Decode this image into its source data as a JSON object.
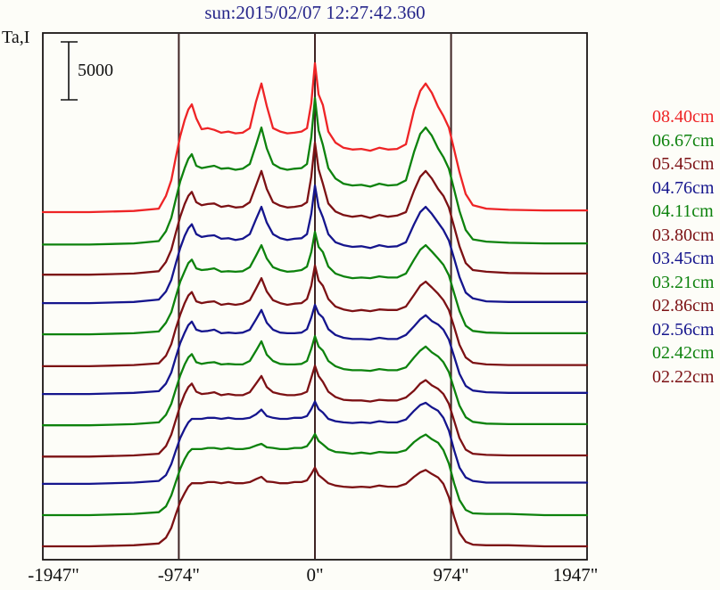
{
  "page": {
    "background": "#fdfdf8"
  },
  "chart_data": {
    "type": "line",
    "title": "sun:2015/02/07 12:27:42.360",
    "title_color": "#26268a",
    "ylabel": "Ta,I",
    "scalebar": {
      "label": "5000",
      "value": 5000
    },
    "x_axis": {
      "unit": "arcsec",
      "range": [
        -1947,
        1947
      ],
      "tick_values": [
        -1947,
        -974,
        0,
        974,
        1947
      ],
      "tick_labels": [
        "-1947\"",
        "-974\"",
        "0\"",
        "974\"",
        "1947\""
      ]
    },
    "vlines": {
      "values": [
        -974,
        0,
        974
      ],
      "color": "#3f2424"
    },
    "frame_color": "#1a1414",
    "legend_position": "right",
    "x": [
      -1947,
      -1615,
      -1296,
      -1117,
      -1066,
      -1028,
      -996,
      -964,
      -932,
      -906,
      -881,
      -849,
      -811,
      -766,
      -721,
      -670,
      -619,
      -568,
      -517,
      -466,
      -421,
      -383,
      -345,
      -300,
      -249,
      -198,
      -147,
      -96,
      -57,
      -26,
      0,
      26,
      57,
      96,
      147,
      204,
      268,
      332,
      396,
      460,
      523,
      587,
      651,
      709,
      753,
      792,
      836,
      881,
      919,
      958,
      996,
      1034,
      1079,
      1130,
      1226,
      1385,
      1641,
      1947
    ],
    "series": [
      {
        "name": "08.40cm",
        "color": "#ee2426",
        "baseline_offset": 30000,
        "y": [
          0,
          0,
          100,
          300,
          1400,
          2750,
          4700,
          6550,
          7950,
          8850,
          9300,
          8100,
          7150,
          7250,
          7100,
          6850,
          6950,
          6800,
          6850,
          7250,
          9550,
          11100,
          9150,
          7250,
          6950,
          6800,
          6850,
          6950,
          7250,
          9400,
          12850,
          10150,
          9250,
          6950,
          6000,
          5550,
          5400,
          5450,
          5300,
          5550,
          5400,
          5450,
          5850,
          8800,
          10450,
          11100,
          10300,
          9100,
          8300,
          7300,
          5400,
          3450,
          1550,
          600,
          300,
          200,
          150,
          150
        ]
      },
      {
        "name": "06.67cm",
        "color": "#0d820d",
        "baseline_offset": 27200,
        "y": [
          0,
          0,
          100,
          300,
          1150,
          2300,
          3900,
          5450,
          6600,
          7400,
          7800,
          6800,
          6600,
          6700,
          6800,
          6550,
          6600,
          6450,
          6550,
          6950,
          8600,
          10100,
          8300,
          6950,
          6600,
          6450,
          6550,
          6600,
          6950,
          9250,
          12650,
          9850,
          8600,
          6600,
          5700,
          5250,
          5100,
          5150,
          5000,
          5250,
          5100,
          5150,
          5550,
          8000,
          9550,
          10100,
          9400,
          8300,
          7550,
          6550,
          4750,
          2900,
          1250,
          450,
          250,
          150,
          100,
          100
        ]
      },
      {
        "name": "05.45cm",
        "color": "#7c1114",
        "baseline_offset": 24600,
        "y": [
          0,
          0,
          100,
          300,
          1100,
          2150,
          3600,
          5000,
          6100,
          6800,
          7150,
          6250,
          6000,
          6100,
          6150,
          5850,
          5950,
          5800,
          5850,
          6250,
          7700,
          8950,
          7400,
          6250,
          5950,
          5800,
          5850,
          5950,
          6250,
          8450,
          11400,
          9100,
          7850,
          6150,
          5450,
          5150,
          5000,
          5100,
          4900,
          5150,
          5000,
          5100,
          5400,
          7250,
          8450,
          8950,
          8300,
          7400,
          6800,
          5800,
          4150,
          2450,
          1000,
          400,
          250,
          150,
          100,
          100
        ]
      },
      {
        "name": "04.76cm",
        "color": "#15158d",
        "baseline_offset": 22150,
        "y": [
          0,
          0,
          100,
          300,
          1000,
          2000,
          3400,
          4750,
          5800,
          6450,
          6800,
          5950,
          5700,
          5800,
          5850,
          5550,
          5600,
          5450,
          5550,
          5950,
          7250,
          8300,
          6950,
          5950,
          5600,
          5450,
          5550,
          5600,
          5950,
          7700,
          10150,
          8300,
          7400,
          5950,
          5250,
          5000,
          4850,
          4900,
          4750,
          5000,
          4850,
          4900,
          5250,
          6800,
          7850,
          8300,
          7700,
          6950,
          6300,
          5400,
          3850,
          2250,
          900,
          400,
          150,
          100,
          100,
          100
        ]
      },
      {
        "name": "04.11cm",
        "color": "#0d820d",
        "baseline_offset": 19450,
        "y": [
          0,
          0,
          100,
          250,
          1000,
          1900,
          3250,
          4550,
          5450,
          6150,
          6450,
          5700,
          5550,
          5600,
          5700,
          5400,
          5450,
          5400,
          5450,
          5800,
          6800,
          7700,
          6550,
          5800,
          5550,
          5400,
          5450,
          5550,
          5850,
          7100,
          8850,
          7550,
          7100,
          5850,
          5250,
          5000,
          4850,
          4900,
          4850,
          5000,
          4900,
          4900,
          5250,
          6450,
          7300,
          7700,
          7150,
          6550,
          6000,
          5100,
          3550,
          2000,
          750,
          300,
          150,
          100,
          100,
          100
        ]
      },
      {
        "name": "03.80cm",
        "color": "#7c1114",
        "baseline_offset": 16700,
        "y": [
          0,
          0,
          100,
          250,
          900,
          1900,
          3250,
          4450,
          5450,
          6100,
          6400,
          5600,
          5450,
          5550,
          5600,
          5300,
          5400,
          5300,
          5400,
          5700,
          6700,
          7600,
          6450,
          5700,
          5450,
          5300,
          5400,
          5450,
          5800,
          6950,
          8700,
          7400,
          6950,
          5800,
          5150,
          4900,
          4750,
          4850,
          4750,
          4900,
          4850,
          4850,
          5150,
          6150,
          6950,
          7300,
          6800,
          6250,
          5700,
          4850,
          3400,
          1850,
          750,
          300,
          150,
          100,
          100,
          100
        ]
      },
      {
        "name": "03.45cm",
        "color": "#15158d",
        "baseline_offset": 14300,
        "y": [
          0,
          0,
          100,
          250,
          900,
          1850,
          3150,
          4400,
          5300,
          5950,
          6250,
          5550,
          5400,
          5450,
          5550,
          5250,
          5300,
          5250,
          5300,
          5550,
          6450,
          7250,
          6150,
          5550,
          5300,
          5250,
          5250,
          5300,
          5600,
          6600,
          7700,
          6950,
          6600,
          5600,
          5100,
          4850,
          4750,
          4750,
          4700,
          4850,
          4750,
          4750,
          5100,
          5850,
          6450,
          6800,
          6300,
          6000,
          5550,
          4700,
          3250,
          1750,
          700,
          300,
          150,
          100,
          100,
          100
        ]
      },
      {
        "name": "03.21cm",
        "color": "#0d820d",
        "baseline_offset": 11600,
        "y": [
          0,
          0,
          100,
          250,
          900,
          1850,
          3100,
          4300,
          5250,
          5850,
          6150,
          5450,
          5300,
          5400,
          5450,
          5250,
          5300,
          5250,
          5250,
          5550,
          6450,
          7250,
          6100,
          5550,
          5300,
          5250,
          5250,
          5300,
          5550,
          6600,
          7700,
          6800,
          6450,
          5550,
          5100,
          4850,
          4750,
          4750,
          4700,
          4850,
          4750,
          4750,
          5000,
          5850,
          6450,
          6800,
          6300,
          5950,
          5450,
          4600,
          3150,
          1700,
          700,
          300,
          150,
          100,
          100,
          100
        ]
      },
      {
        "name": "02.86cm",
        "color": "#7c1114",
        "baseline_offset": 8900,
        "y": [
          0,
          0,
          100,
          250,
          900,
          1900,
          3150,
          4400,
          5400,
          6000,
          6300,
          5600,
          5400,
          5450,
          5550,
          5300,
          5400,
          5300,
          5300,
          5550,
          6300,
          6950,
          6000,
          5550,
          5400,
          5300,
          5300,
          5400,
          5600,
          6800,
          7850,
          6950,
          6450,
          5600,
          5150,
          4900,
          4850,
          4850,
          4750,
          4900,
          4850,
          4850,
          5100,
          5700,
          6300,
          6600,
          6150,
          5850,
          5400,
          4550,
          3100,
          1600,
          600,
          250,
          150,
          100,
          100,
          100
        ]
      },
      {
        "name": "02.56cm",
        "color": "#15158d",
        "baseline_offset": 6550,
        "y": [
          0,
          0,
          100,
          250,
          750,
          1700,
          2850,
          3950,
          4750,
          5300,
          5600,
          5600,
          5600,
          5700,
          5700,
          5600,
          5700,
          5600,
          5600,
          5700,
          6000,
          6400,
          5850,
          5700,
          5600,
          5600,
          5700,
          5700,
          5850,
          6450,
          7100,
          6450,
          6150,
          5600,
          5400,
          5300,
          5250,
          5300,
          5250,
          5400,
          5300,
          5300,
          5550,
          6300,
          6800,
          7000,
          6600,
          6300,
          5700,
          4600,
          2900,
          1400,
          550,
          250,
          100,
          100,
          100,
          100
        ]
      },
      {
        "name": "02.42cm",
        "color": "#0d820d",
        "baseline_offset": 3850,
        "y": [
          0,
          0,
          100,
          250,
          750,
          1700,
          2850,
          4000,
          4850,
          5400,
          5700,
          5700,
          5700,
          5800,
          5800,
          5700,
          5800,
          5700,
          5700,
          5800,
          6000,
          6150,
          5850,
          5800,
          5700,
          5700,
          5800,
          5800,
          5950,
          6450,
          7000,
          6400,
          6100,
          5700,
          5450,
          5400,
          5300,
          5400,
          5300,
          5450,
          5400,
          5400,
          5600,
          6300,
          6700,
          6950,
          6550,
          6250,
          5600,
          4450,
          2750,
          1300,
          450,
          150,
          100,
          100,
          0,
          0
        ]
      },
      {
        "name": "02.22cm",
        "color": "#7c1114",
        "baseline_offset": 1150,
        "y": [
          0,
          0,
          100,
          250,
          750,
          1600,
          2750,
          3850,
          4600,
          5150,
          5450,
          5450,
          5450,
          5550,
          5550,
          5450,
          5550,
          5450,
          5450,
          5550,
          5800,
          6000,
          5600,
          5550,
          5450,
          5450,
          5550,
          5550,
          5700,
          6250,
          6800,
          6150,
          5850,
          5450,
          5250,
          5150,
          5100,
          5150,
          5100,
          5250,
          5150,
          5150,
          5400,
          6000,
          6400,
          6600,
          6250,
          5950,
          5400,
          4250,
          2550,
          1150,
          400,
          150,
          100,
          100,
          0,
          0
        ]
      }
    ]
  }
}
